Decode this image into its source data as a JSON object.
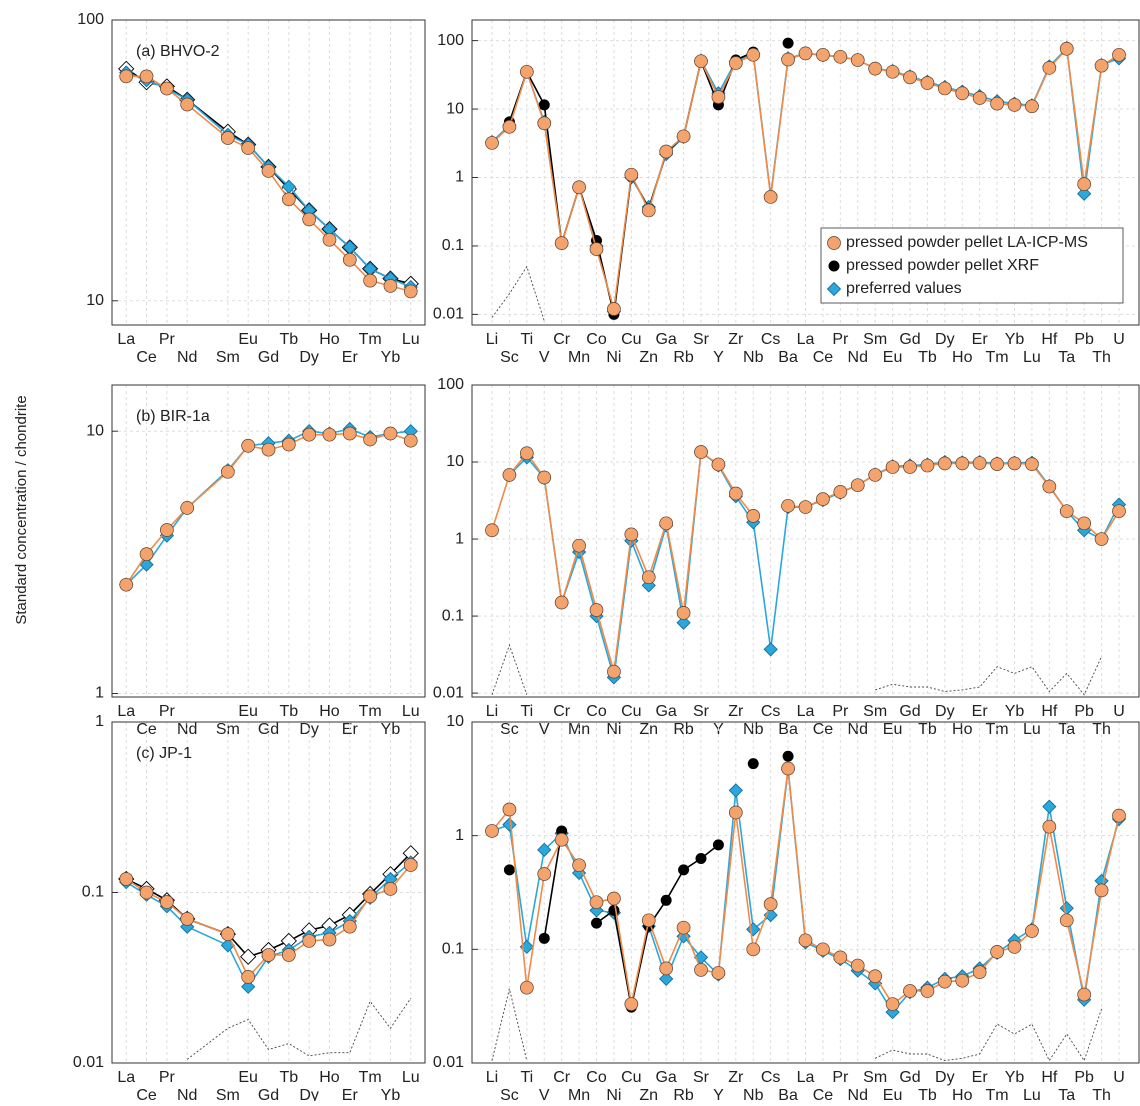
{
  "ylabel": "Standard concentration / chondrite",
  "chart_data": [
    {
      "type": "line",
      "label": "(a) BHVO-2",
      "scale": "log",
      "x": [
        57,
        58,
        59,
        60,
        62,
        63,
        64,
        65,
        66,
        67,
        68,
        69,
        70,
        71
      ],
      "xlim": [
        56.3,
        71.7
      ],
      "xticks": [
        {
          "value": 57,
          "label": "La"
        },
        {
          "value": 58,
          "label": "Ce"
        },
        {
          "value": 59,
          "label": "Pr"
        },
        {
          "value": 60,
          "label": "Nd"
        },
        {
          "value": 62,
          "label": "Sm"
        },
        {
          "value": 63,
          "label": "Eu"
        },
        {
          "value": 64,
          "label": "Gd"
        },
        {
          "value": 65,
          "label": "Tb"
        },
        {
          "value": 66,
          "label": "Dy"
        },
        {
          "value": 67,
          "label": "Ho"
        },
        {
          "value": 68,
          "label": "Er"
        },
        {
          "value": 69,
          "label": "Tm"
        },
        {
          "value": 70,
          "label": "Yb"
        },
        {
          "value": 71,
          "label": "Lu"
        }
      ],
      "ylim": [
        8.2,
        100
      ],
      "yticks": [
        10,
        100
      ],
      "series": [
        {
          "color": "#f5a36c",
          "marker": "circle",
          "values": [
            63,
            63,
            57,
            50,
            38,
            35,
            29,
            23,
            19.5,
            16.5,
            14,
            11.8,
            11.3,
            10.8
          ]
        },
        {
          "color": "#2aa7dd",
          "marker": "diamond",
          "values": [
            65,
            61,
            57,
            52,
            39,
            36,
            30,
            25.5,
            21,
            18,
            15.5,
            13,
            12,
            11.2
          ]
        },
        {
          "color": "#000000",
          "marker": "diamond-open",
          "values": [
            67,
            60,
            58,
            52,
            40,
            36,
            30,
            25,
            21,
            18,
            15.5,
            13,
            12,
            11.5
          ]
        }
      ]
    },
    {
      "type": "line",
      "scale": "log",
      "legend": "lower right",
      "categories": [
        "Li",
        "Sc",
        "Ti",
        "V",
        "Cr",
        "Mn",
        "Co",
        "Ni",
        "Cu",
        "Zn",
        "Ga",
        "Rb",
        "Sr",
        "Y",
        "Zr",
        "Nb",
        "Cs",
        "Ba",
        "La",
        "Ce",
        "Pr",
        "Nd",
        "Sm",
        "Eu",
        "Gd",
        "Tb",
        "Dy",
        "Ho",
        "Er",
        "Tm",
        "Yb",
        "Lu",
        "Hf",
        "Ta",
        "Pb",
        "Th",
        "U"
      ],
      "ylim": [
        0.007,
        200
      ],
      "yticks": [
        0.01,
        0.1,
        1,
        10,
        100
      ],
      "series": [
        {
          "name": "pressed powder pellet LA-ICP-MS",
          "color": "#f5a36c",
          "marker": "circle",
          "values": [
            3.2,
            5.5,
            35,
            6.2,
            0.11,
            0.72,
            0.09,
            0.012,
            1.1,
            0.33,
            2.4,
            4.0,
            50,
            15,
            47,
            62,
            0.52,
            53,
            65,
            62,
            58,
            52,
            39,
            35,
            29,
            24,
            20,
            17,
            14.5,
            12,
            11.5,
            11,
            40,
            76,
            0.8,
            43,
            62
          ]
        },
        {
          "name": "pressed powder pellet XRF",
          "color": "#000000",
          "marker": "circle-small",
          "values": [
            null,
            6.5,
            35,
            11.5,
            0.11,
            0.72,
            0.12,
            0.01,
            1.05,
            0.35,
            2.3,
            4.0,
            50,
            11.5,
            52,
            68,
            null,
            92,
            null,
            null,
            null,
            null,
            null,
            null,
            null,
            null,
            null,
            null,
            null,
            null,
            null,
            null,
            null,
            null,
            null,
            null,
            null
          ]
        },
        {
          "name": "preferred values",
          "color": "#2aa7dd",
          "marker": "diamond",
          "values": [
            3.3,
            5.8,
            35,
            6.5,
            0.11,
            0.72,
            0.1,
            0.011,
            1.0,
            0.37,
            2.2,
            3.9,
            51,
            17,
            50,
            64,
            0.55,
            55,
            65,
            61,
            58,
            52,
            39,
            36,
            30,
            25,
            21,
            18,
            15.5,
            13,
            12,
            11.3,
            42,
            78,
            0.58,
            44,
            55
          ]
        },
        {
          "color": "#444444",
          "marker": "none",
          "dash": true,
          "values": [
            0.009,
            0.02,
            0.05,
            0.008,
            null,
            null,
            null,
            null,
            null,
            null,
            null,
            null,
            null,
            null,
            null,
            null,
            0.008,
            null,
            null,
            null,
            null,
            null,
            null,
            null,
            null,
            null,
            null,
            null,
            null,
            null,
            null,
            null,
            null,
            null,
            null,
            0.035,
            null
          ]
        }
      ]
    },
    {
      "type": "line",
      "label": "(b) BIR-1a",
      "scale": "log",
      "x": [
        57,
        58,
        59,
        60,
        62,
        63,
        64,
        65,
        66,
        67,
        68,
        69,
        70,
        71
      ],
      "xlim": [
        56.3,
        71.7
      ],
      "xticks": [
        {
          "value": 57,
          "label": "La"
        },
        {
          "value": 58,
          "label": "Ce"
        },
        {
          "value": 59,
          "label": "Pr"
        },
        {
          "value": 60,
          "label": "Nd"
        },
        {
          "value": 62,
          "label": "Sm"
        },
        {
          "value": 63,
          "label": "Eu"
        },
        {
          "value": 64,
          "label": "Gd"
        },
        {
          "value": 65,
          "label": "Tb"
        },
        {
          "value": 66,
          "label": "Dy"
        },
        {
          "value": 67,
          "label": "Ho"
        },
        {
          "value": 68,
          "label": "Er"
        },
        {
          "value": 69,
          "label": "Tm"
        },
        {
          "value": 70,
          "label": "Yb"
        },
        {
          "value": 71,
          "label": "Lu"
        }
      ],
      "ylim": [
        0.97,
        15
      ],
      "yticks": [
        1,
        10
      ],
      "series": [
        {
          "color": "#f5a36c",
          "marker": "circle",
          "values": [
            2.6,
            3.4,
            4.2,
            5.1,
            7.0,
            8.8,
            8.5,
            8.9,
            9.7,
            9.7,
            9.8,
            9.3,
            9.8,
            9.2
          ]
        },
        {
          "color": "#2aa7dd",
          "marker": "diamond",
          "values": [
            2.6,
            3.1,
            4.0,
            5.1,
            7.1,
            8.8,
            9.0,
            9.2,
            10.0,
            9.8,
            10.2,
            9.5,
            9.8,
            10.0
          ]
        }
      ]
    },
    {
      "type": "line",
      "scale": "log",
      "categories": [
        "Li",
        "Sc",
        "Ti",
        "V",
        "Cr",
        "Mn",
        "Co",
        "Ni",
        "Cu",
        "Zn",
        "Ga",
        "Rb",
        "Sr",
        "Y",
        "Zr",
        "Nb",
        "Cs",
        "Ba",
        "La",
        "Ce",
        "Pr",
        "Nd",
        "Sm",
        "Eu",
        "Gd",
        "Tb",
        "Dy",
        "Ho",
        "Er",
        "Tm",
        "Yb",
        "Lu",
        "Hf",
        "Ta",
        "Pb",
        "Th",
        "U"
      ],
      "ylim": [
        0.0089,
        100
      ],
      "yticks": [
        0.01,
        0.1,
        1,
        10,
        100
      ],
      "series": [
        {
          "color": "#f5a36c",
          "marker": "circle",
          "values": [
            1.3,
            6.8,
            13,
            6.3,
            0.15,
            0.82,
            0.12,
            0.019,
            1.15,
            0.32,
            1.6,
            0.11,
            13.5,
            9.3,
            3.9,
            2.0,
            null,
            2.7,
            2.6,
            3.3,
            4.1,
            5.0,
            6.8,
            8.6,
            8.6,
            9.0,
            9.6,
            9.6,
            9.7,
            9.4,
            9.6,
            9.4,
            4.8,
            2.3,
            1.6,
            1.0,
            2.3
          ]
        },
        {
          "color": "#2aa7dd",
          "marker": "diamond",
          "values": [
            null,
            6.8,
            11.5,
            6.2,
            0.15,
            0.68,
            0.1,
            0.016,
            0.95,
            0.25,
            1.5,
            0.082,
            13.5,
            9.0,
            3.6,
            1.65,
            0.037,
            2.6,
            2.6,
            3.2,
            4.0,
            5.0,
            6.9,
            8.8,
            9.0,
            9.3,
            10,
            9.9,
            10,
            9.6,
            9.8,
            9.8,
            4.9,
            2.3,
            1.3,
            1.0,
            2.8
          ]
        },
        {
          "color": "#444444",
          "marker": "none",
          "dash": true,
          "values": [
            0.0095,
            0.042,
            0.0095,
            null,
            null,
            null,
            null,
            null,
            null,
            null,
            null,
            null,
            null,
            null,
            null,
            null,
            null,
            null,
            null,
            null,
            null,
            null,
            0.011,
            0.013,
            0.012,
            0.012,
            0.0105,
            0.011,
            0.012,
            0.022,
            0.018,
            0.022,
            0.0105,
            0.018,
            0.0095,
            0.03,
            null
          ]
        }
      ]
    },
    {
      "type": "line",
      "label": "(c) JP-1",
      "scale": "log",
      "x": [
        57,
        58,
        59,
        60,
        62,
        63,
        64,
        65,
        66,
        67,
        68,
        69,
        70,
        71
      ],
      "xlim": [
        56.3,
        71.7
      ],
      "xticks": [
        {
          "value": 57,
          "label": "La"
        },
        {
          "value": 58,
          "label": "Ce"
        },
        {
          "value": 59,
          "label": "Pr"
        },
        {
          "value": 60,
          "label": "Nd"
        },
        {
          "value": 62,
          "label": "Sm"
        },
        {
          "value": 63,
          "label": "Eu"
        },
        {
          "value": 64,
          "label": "Gd"
        },
        {
          "value": 65,
          "label": "Tb"
        },
        {
          "value": 66,
          "label": "Dy"
        },
        {
          "value": 67,
          "label": "Ho"
        },
        {
          "value": 68,
          "label": "Er"
        },
        {
          "value": 69,
          "label": "Tm"
        },
        {
          "value": 70,
          "label": "Yb"
        },
        {
          "value": 71,
          "label": "Lu"
        }
      ],
      "ylim": [
        0.01,
        1
      ],
      "yticks": [
        0.01,
        0.1,
        1
      ],
      "series": [
        {
          "color": "#f5a36c",
          "marker": "circle",
          "values": [
            0.12,
            0.1,
            0.088,
            0.07,
            0.057,
            0.032,
            0.043,
            0.043,
            0.052,
            0.053,
            0.063,
            0.095,
            0.105,
            0.145
          ]
        },
        {
          "color": "#2aa7dd",
          "marker": "diamond",
          "values": [
            0.115,
            0.097,
            0.083,
            0.063,
            0.049,
            0.028,
            0.042,
            0.046,
            0.055,
            0.058,
            0.068,
            0.093,
            0.12,
            0.15
          ]
        },
        {
          "color": "#000000",
          "marker": "diamond-open",
          "values": [
            0.12,
            0.105,
            0.09,
            0.07,
            0.057,
            0.042,
            0.046,
            0.052,
            0.06,
            0.064,
            0.074,
            0.098,
            0.128,
            0.17
          ]
        },
        {
          "color": "#444444",
          "marker": "none",
          "dash": true,
          "values": [
            null,
            null,
            null,
            0.0105,
            0.016,
            0.018,
            0.012,
            0.013,
            0.011,
            0.0115,
            0.0115,
            0.023,
            0.016,
            0.024
          ]
        }
      ]
    },
    {
      "type": "line",
      "scale": "log",
      "categories": [
        "Li",
        "Sc",
        "Ti",
        "V",
        "Cr",
        "Mn",
        "Co",
        "Ni",
        "Cu",
        "Zn",
        "Ga",
        "Rb",
        "Sr",
        "Y",
        "Zr",
        "Nb",
        "Cs",
        "Ba",
        "La",
        "Ce",
        "Pr",
        "Nd",
        "Sm",
        "Eu",
        "Gd",
        "Tb",
        "Dy",
        "Ho",
        "Er",
        "Tm",
        "Yb",
        "Lu",
        "Hf",
        "Ta",
        "Pb",
        "Th",
        "U"
      ],
      "ylim": [
        0.01,
        10
      ],
      "yticks": [
        0.01,
        0.1,
        1,
        10
      ],
      "series": [
        {
          "color": "#f5a36c",
          "marker": "circle",
          "values": [
            1.1,
            1.7,
            0.046,
            0.46,
            0.92,
            0.55,
            0.26,
            0.28,
            0.033,
            0.18,
            0.068,
            0.155,
            0.066,
            0.062,
            1.6,
            0.1,
            0.25,
            3.9,
            0.12,
            0.1,
            0.085,
            0.072,
            0.058,
            0.033,
            0.043,
            0.043,
            0.052,
            0.053,
            0.063,
            0.095,
            0.105,
            0.145,
            1.2,
            0.18,
            0.04,
            0.33,
            1.5
          ]
        },
        {
          "color": "#000000",
          "marker": "circle-small",
          "values": [
            null,
            0.5,
            null,
            0.125,
            1.1,
            null,
            0.17,
            0.22,
            0.031,
            0.16,
            0.27,
            0.5,
            0.63,
            0.83,
            null,
            4.3,
            null,
            5.0,
            null,
            null,
            null,
            null,
            null,
            null,
            null,
            null,
            null,
            null,
            null,
            null,
            null,
            null,
            null,
            null,
            null,
            null,
            null
          ]
        },
        {
          "color": "#2aa7dd",
          "marker": "diamond",
          "values": [
            1.1,
            1.25,
            0.105,
            0.75,
            1.05,
            0.47,
            0.22,
            0.21,
            0.033,
            0.16,
            0.055,
            0.13,
            0.085,
            0.06,
            2.5,
            0.15,
            0.2,
            3.8,
            0.115,
            0.097,
            0.082,
            0.065,
            0.05,
            0.028,
            0.042,
            0.046,
            0.055,
            0.058,
            0.068,
            0.093,
            0.12,
            0.15,
            1.8,
            0.23,
            0.036,
            0.4,
            1.4
          ]
        },
        {
          "color": "#444444",
          "marker": "none",
          "dash": true,
          "values": [
            0.0105,
            0.045,
            0.0105,
            null,
            null,
            null,
            null,
            null,
            null,
            null,
            null,
            null,
            null,
            null,
            null,
            null,
            null,
            null,
            null,
            null,
            null,
            null,
            0.011,
            0.013,
            0.012,
            0.012,
            0.0105,
            0.011,
            0.012,
            0.022,
            0.018,
            0.022,
            0.0105,
            0.018,
            0.0105,
            0.03,
            null
          ]
        }
      ]
    }
  ]
}
